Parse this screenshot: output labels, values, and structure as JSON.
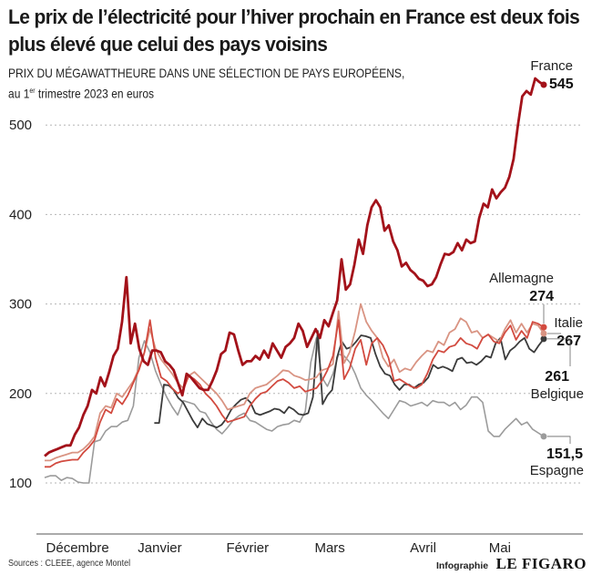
{
  "chart_data": {
    "type": "line",
    "title": "Le prix de l’électricité pour l’hiver prochain en France est deux fois plus élevé que celui des pays voisins",
    "subtitle_line1": "PRIX DU MÉGAWATTHEURE DANS UNE SÉLECTION DE PAYS EUROPÉENS,",
    "subtitle_line2_pre": "au 1",
    "subtitle_line2_sup": "er",
    "subtitle_line2_post": " trimestre 2023 en euros",
    "xlabel": "",
    "ylabel": "",
    "ylim": [
      100,
      545
    ],
    "yticks": [
      100,
      200,
      300,
      400,
      500
    ],
    "ytick_labels": [
      "100",
      "200",
      "300",
      "400",
      "500"
    ],
    "x_range": [
      0,
      91
    ],
    "month_labels": [
      {
        "label": "Décembre",
        "x": 6
      },
      {
        "label": "Janvier",
        "x": 21
      },
      {
        "label": "Février",
        "x": 37
      },
      {
        "label": "Mars",
        "x": 52
      },
      {
        "label": "Avril",
        "x": 69
      },
      {
        "label": "Mai",
        "x": 83
      }
    ],
    "grid": true,
    "series": [
      {
        "name": "Espagne",
        "end_label": "151,5",
        "color": "#9b9b9b",
        "start": 0,
        "values": [
          106,
          108,
          108,
          103,
          106,
          105,
          101,
          100,
          100,
          146,
          148,
          158,
          163,
          163,
          168,
          170,
          186,
          240,
          259,
          246,
          225,
          210,
          196,
          185,
          176,
          192,
          190,
          188,
          180,
          178,
          168,
          160,
          155,
          162,
          170,
          175,
          178,
          170,
          168,
          164,
          160,
          158,
          163,
          165,
          166,
          170,
          168,
          180,
          235,
          262,
          218,
          208,
          222,
          244,
          242,
          235,
          222,
          206,
          198,
          192,
          185,
          178,
          172,
          182,
          192,
          190,
          186,
          188,
          190,
          186,
          192,
          190,
          190,
          186,
          190,
          182,
          187,
          196,
          196,
          190,
          158,
          152,
          152,
          160,
          166,
          172,
          165,
          168,
          160,
          156,
          152
        ]
      },
      {
        "name": "Belgique",
        "end_label": "261",
        "color": "#3b3b3b",
        "start": 20,
        "values": [
          167,
          167,
          210,
          209,
          204,
          195,
          190,
          180,
          170,
          162,
          172,
          166,
          164,
          162,
          165,
          172,
          182,
          188,
          193,
          195,
          190,
          178,
          176,
          178,
          180,
          183,
          182,
          178,
          185,
          182,
          177,
          176,
          178,
          196,
          270,
          188,
          198,
          204,
          240,
          258,
          250,
          252,
          258,
          265,
          264,
          262,
          244,
          230,
          222,
          220,
          210,
          204,
          210,
          210,
          206,
          210,
          212,
          218,
          232,
          228,
          230,
          228,
          225,
          238,
          240,
          234,
          235,
          232,
          236,
          242,
          240,
          256,
          262,
          238,
          248,
          252,
          258,
          262,
          250,
          246,
          254,
          261
        ]
      },
      {
        "name": "Italie",
        "end_label": "267",
        "color": "#d99483",
        "start": 0,
        "values": [
          125,
          125,
          128,
          130,
          132,
          134,
          134,
          138,
          144,
          152,
          178,
          186,
          184,
          200,
          196,
          205,
          214,
          228,
          246,
          272,
          250,
          238,
          230,
          222,
          212,
          206,
          220,
          224,
          218,
          212,
          206,
          200,
          192,
          182,
          184,
          186,
          188,
          200,
          206,
          208,
          210,
          215,
          220,
          226,
          225,
          220,
          218,
          215,
          216,
          218,
          226,
          228,
          233,
          292,
          234,
          246,
          270,
          300,
          280,
          270,
          262,
          240,
          230,
          238,
          224,
          228,
          226,
          235,
          242,
          248,
          246,
          258,
          254,
          268,
          272,
          284,
          280,
          268,
          270,
          262,
          266,
          262,
          258,
          272,
          282,
          268,
          278,
          268,
          278,
          276,
          267
        ]
      },
      {
        "name": "Allemagne",
        "end_label": "274",
        "color": "#d24a3f",
        "start": 0,
        "values": [
          118,
          118,
          122,
          124,
          125,
          126,
          126,
          134,
          140,
          148,
          168,
          182,
          178,
          194,
          188,
          198,
          212,
          226,
          246,
          282,
          240,
          218,
          214,
          206,
          200,
          204,
          220,
          216,
          210,
          200,
          194,
          186,
          176,
          168,
          170,
          172,
          174,
          186,
          194,
          200,
          202,
          208,
          214,
          216,
          212,
          206,
          208,
          202,
          204,
          206,
          214,
          226,
          242,
          282,
          216,
          228,
          250,
          260,
          232,
          256,
          262,
          254,
          240,
          214,
          216,
          212,
          208,
          206,
          210,
          222,
          238,
          248,
          246,
          252,
          254,
          262,
          256,
          254,
          250,
          262,
          266,
          258,
          256,
          268,
          276,
          260,
          270,
          262,
          280,
          278,
          274
        ]
      },
      {
        "name": "France",
        "end_label": "545",
        "color": "#a3121a",
        "start": 0,
        "values": [
          130,
          134,
          136,
          138,
          140,
          142,
          142,
          154,
          162,
          176,
          186,
          204,
          200,
          218,
          208,
          224,
          242,
          250,
          280,
          330,
          256,
          278,
          250,
          236,
          232,
          248,
          248,
          246,
          236,
          232,
          226,
          212,
          198,
          222,
          218,
          212,
          206,
          204,
          204,
          214,
          226,
          244,
          248,
          268,
          266,
          248,
          232,
          236,
          236,
          242,
          238,
          248,
          240,
          256,
          248,
          240,
          252,
          256,
          262,
          278,
          270,
          252,
          262,
          272,
          262,
          282,
          275,
          290,
          304,
          350,
          316,
          322,
          344,
          372,
          356,
          388,
          408,
          416,
          408,
          382,
          388,
          370,
          360,
          342,
          346,
          338,
          334,
          328,
          326,
          320,
          322,
          330,
          344,
          356,
          355,
          358,
          368,
          360,
          372,
          368,
          370,
          396,
          412,
          408,
          428,
          418,
          425,
          430,
          442,
          462,
          500,
          532,
          538,
          534,
          552,
          548,
          545
        ]
      }
    ],
    "end_markers": true
  },
  "footer": {
    "source": "Sources : CLEEE, agence Montel",
    "credit_prefix": "Infographie",
    "brand": "LE FIGARO"
  }
}
